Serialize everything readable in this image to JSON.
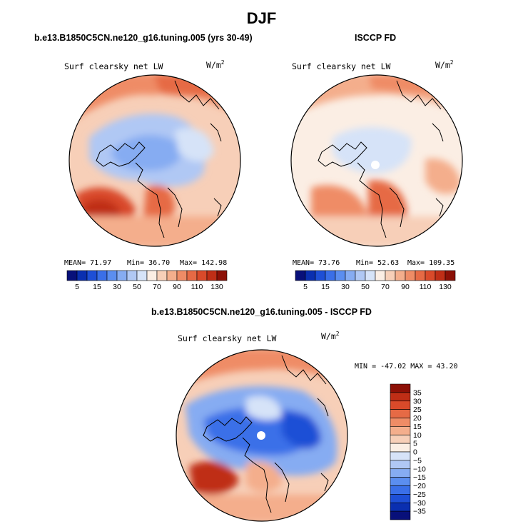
{
  "figure_title": "DJF",
  "panels": [
    {
      "header": "b.e13.B1850C5CN.ne120_g16.tuning.005 (yrs 30-49)",
      "variable": "Surf clearsky net LW",
      "units": "W/m",
      "units_sup": "2",
      "stats": {
        "mean": "MEAN=  71.97",
        "min": "Min=  36.70",
        "max": "Max= 142.98"
      }
    },
    {
      "header": "ISCCP FD",
      "variable": "Surf clearsky net LW",
      "units": "W/m",
      "units_sup": "2",
      "stats": {
        "mean": "MEAN=  73.76",
        "min": "Min=  52.63",
        "max": "Max= 109.35"
      }
    },
    {
      "header": "b.e13.B1850C5CN.ne120_g16.tuning.005 - ISCCP FD",
      "variable": "Surf clearsky net LW",
      "units": "W/m",
      "units_sup": "2",
      "stats": {
        "minmax": "MIN = -47.02 MAX =  43.20"
      }
    }
  ],
  "chart_data": [
    {
      "type": "heatmap",
      "title": "Surf clearsky net LW",
      "colorbar": {
        "orientation": "horizontal",
        "levels": [
          5,
          10,
          15,
          20,
          30,
          40,
          50,
          60,
          70,
          80,
          90,
          100,
          110,
          120,
          130
        ],
        "tick_labels": [
          "5",
          "15",
          "30",
          "50",
          "70",
          "90",
          "110",
          "130"
        ],
        "colors": [
          "#08107a",
          "#0a2fb0",
          "#1e4fd6",
          "#3a6fe8",
          "#5b8ef0",
          "#86acf2",
          "#b0c8f4",
          "#d6e3f8",
          "#fbeee4",
          "#f7cfb8",
          "#f4ae8c",
          "#ef8c66",
          "#e66a45",
          "#d94a2a",
          "#bf2e16",
          "#8c1006"
        ]
      }
    },
    {
      "type": "heatmap",
      "title": "Surf clearsky net LW",
      "colorbar": {
        "orientation": "horizontal",
        "levels": [
          5,
          10,
          15,
          20,
          30,
          40,
          50,
          60,
          70,
          80,
          90,
          100,
          110,
          120,
          130
        ],
        "tick_labels": [
          "5",
          "15",
          "30",
          "50",
          "70",
          "90",
          "110",
          "130"
        ],
        "colors": [
          "#08107a",
          "#0a2fb0",
          "#1e4fd6",
          "#3a6fe8",
          "#5b8ef0",
          "#86acf2",
          "#b0c8f4",
          "#d6e3f8",
          "#fbeee4",
          "#f7cfb8",
          "#f4ae8c",
          "#ef8c66",
          "#e66a45",
          "#d94a2a",
          "#bf2e16",
          "#8c1006"
        ]
      }
    },
    {
      "type": "heatmap",
      "title": "Surf clearsky net LW",
      "colorbar": {
        "orientation": "vertical",
        "levels": [
          35,
          30,
          25,
          20,
          15,
          10,
          5,
          0,
          -5,
          -10,
          -15,
          -20,
          -25,
          -30,
          -35
        ],
        "tick_labels": [
          "35",
          "30",
          "25",
          "20",
          "15",
          "10",
          "5",
          "0",
          "−5",
          "−10",
          "−15",
          "−20",
          "−25",
          "−30",
          "−35"
        ],
        "colors": [
          "#8c1006",
          "#bf2e16",
          "#d94a2a",
          "#e66a45",
          "#ef8c66",
          "#f4ae8c",
          "#f7cfb8",
          "#fbeee4",
          "#d6e3f8",
          "#b0c8f4",
          "#86acf2",
          "#5b8ef0",
          "#3a6fe8",
          "#1e4fd6",
          "#0a2fb0",
          "#08107a"
        ]
      }
    }
  ]
}
